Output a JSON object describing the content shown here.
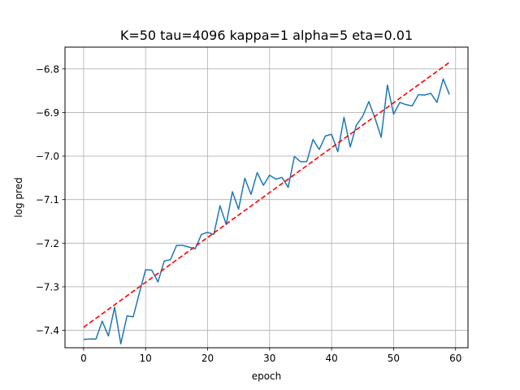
{
  "chart_data": {
    "type": "line",
    "title": "K=50 tau=4096 kappa=1 alpha=5 eta=0.01",
    "xlabel": "epoch",
    "ylabel": "log pred",
    "xlim": [
      -3,
      62
    ],
    "ylim": [
      -7.44,
      -6.75
    ],
    "x_ticks": [
      0,
      10,
      20,
      30,
      40,
      50,
      60
    ],
    "y_ticks": [
      -7.4,
      -7.3,
      -7.2,
      -7.1,
      -7.0,
      -6.9,
      -6.8
    ],
    "x_tick_labels": [
      "0",
      "10",
      "20",
      "30",
      "40",
      "50",
      "60"
    ],
    "y_tick_labels": [
      "−7.4",
      "−7.3",
      "−7.2",
      "−7.1",
      "−7.0",
      "−6.9",
      "−6.8"
    ],
    "grid": true,
    "series": [
      {
        "style": "solid",
        "color": "#1f77b4",
        "x": [
          0,
          1,
          2,
          3,
          4,
          5,
          6,
          7,
          8,
          9,
          10,
          11,
          12,
          13,
          14,
          15,
          16,
          17,
          18,
          19,
          20,
          21,
          22,
          23,
          24,
          25,
          26,
          27,
          28,
          29,
          30,
          31,
          32,
          33,
          34,
          35,
          36,
          37,
          38,
          39,
          40,
          41,
          42,
          43,
          44,
          45,
          46,
          47,
          48,
          49,
          50,
          51,
          52,
          53,
          54,
          55,
          56,
          57,
          58,
          59
        ],
        "values": [
          -7.421,
          -7.42,
          -7.42,
          -7.379,
          -7.413,
          -7.347,
          -7.431,
          -7.367,
          -7.369,
          -7.314,
          -7.261,
          -7.262,
          -7.289,
          -7.241,
          -7.238,
          -7.205,
          -7.205,
          -7.209,
          -7.213,
          -7.18,
          -7.175,
          -7.18,
          -7.114,
          -7.157,
          -7.082,
          -7.122,
          -7.051,
          -7.088,
          -7.038,
          -7.067,
          -7.044,
          -7.053,
          -7.049,
          -7.072,
          -7.001,
          -7.013,
          -7.013,
          -6.962,
          -6.985,
          -6.954,
          -6.95,
          -6.99,
          -6.911,
          -6.979,
          -6.929,
          -6.909,
          -6.875,
          -6.913,
          -6.957,
          -6.837,
          -6.904,
          -6.877,
          -6.882,
          -6.885,
          -6.859,
          -6.86,
          -6.856,
          -6.877,
          -6.823,
          -6.859
        ]
      },
      {
        "style": "dashed",
        "color": "#ff0000",
        "x": [
          0,
          59
        ],
        "values": [
          -7.393,
          -6.785
        ]
      }
    ]
  }
}
